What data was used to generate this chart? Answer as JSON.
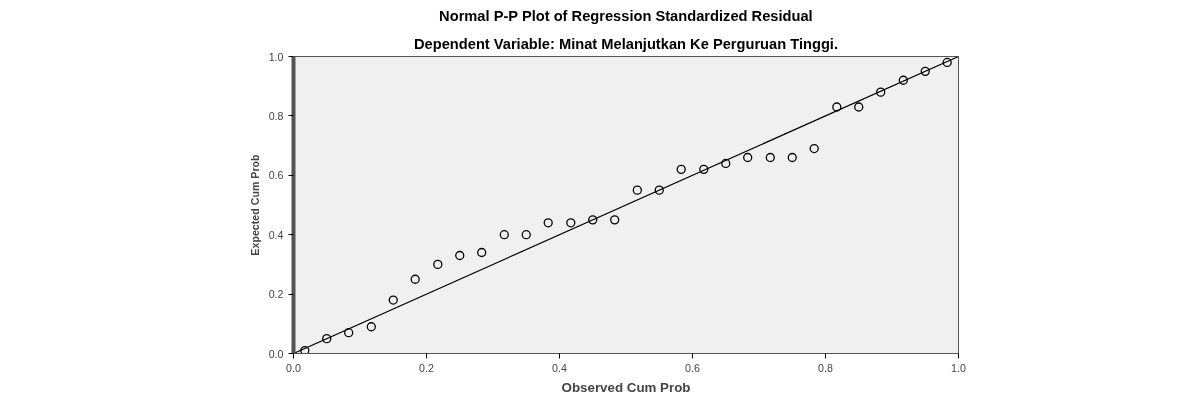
{
  "chart_data": {
    "type": "scatter",
    "title": "Normal P-P Plot of Regression Standardized Residual",
    "subtitle": "Dependent Variable: Minat Melanjutkan Ke Perguruan Tinggi.",
    "xlabel": "Observed Cum Prob",
    "ylabel": "Expected Cum Prob",
    "x": [
      0.017,
      0.05,
      0.083,
      0.117,
      0.15,
      0.183,
      0.217,
      0.25,
      0.283,
      0.317,
      0.35,
      0.383,
      0.417,
      0.45,
      0.483,
      0.517,
      0.55,
      0.583,
      0.617,
      0.65,
      0.683,
      0.717,
      0.75,
      0.783,
      0.817,
      0.85,
      0.883,
      0.917,
      0.95,
      0.983
    ],
    "series": [
      {
        "color": "#000000",
        "marker": "circle",
        "values": [
          0.01,
          0.05,
          0.07,
          0.09,
          0.18,
          0.25,
          0.3,
          0.33,
          0.34,
          0.4,
          0.4,
          0.44,
          0.44,
          0.45,
          0.45,
          0.55,
          0.55,
          0.62,
          0.62,
          0.64,
          0.66,
          0.66,
          0.66,
          0.69,
          0.83,
          0.83,
          0.88,
          0.92,
          0.95,
          0.98
        ]
      },
      {
        "type": "line",
        "color": "#000000",
        "x": [
          0,
          1
        ],
        "values": [
          0,
          1
        ]
      }
    ],
    "xlim": [
      0,
      1
    ],
    "ylim": [
      0,
      1
    ],
    "xticks": [
      {
        "value": 0,
        "label": "0.0"
      },
      0.2,
      0.4,
      0.6,
      0.8,
      {
        "value": 1,
        "label": "1.0"
      }
    ],
    "yticks": [
      {
        "value": 0,
        "label": "0.0"
      },
      0.2,
      0.4,
      0.6,
      0.8,
      {
        "value": 1,
        "label": "1.0"
      }
    ],
    "grid": false
  }
}
